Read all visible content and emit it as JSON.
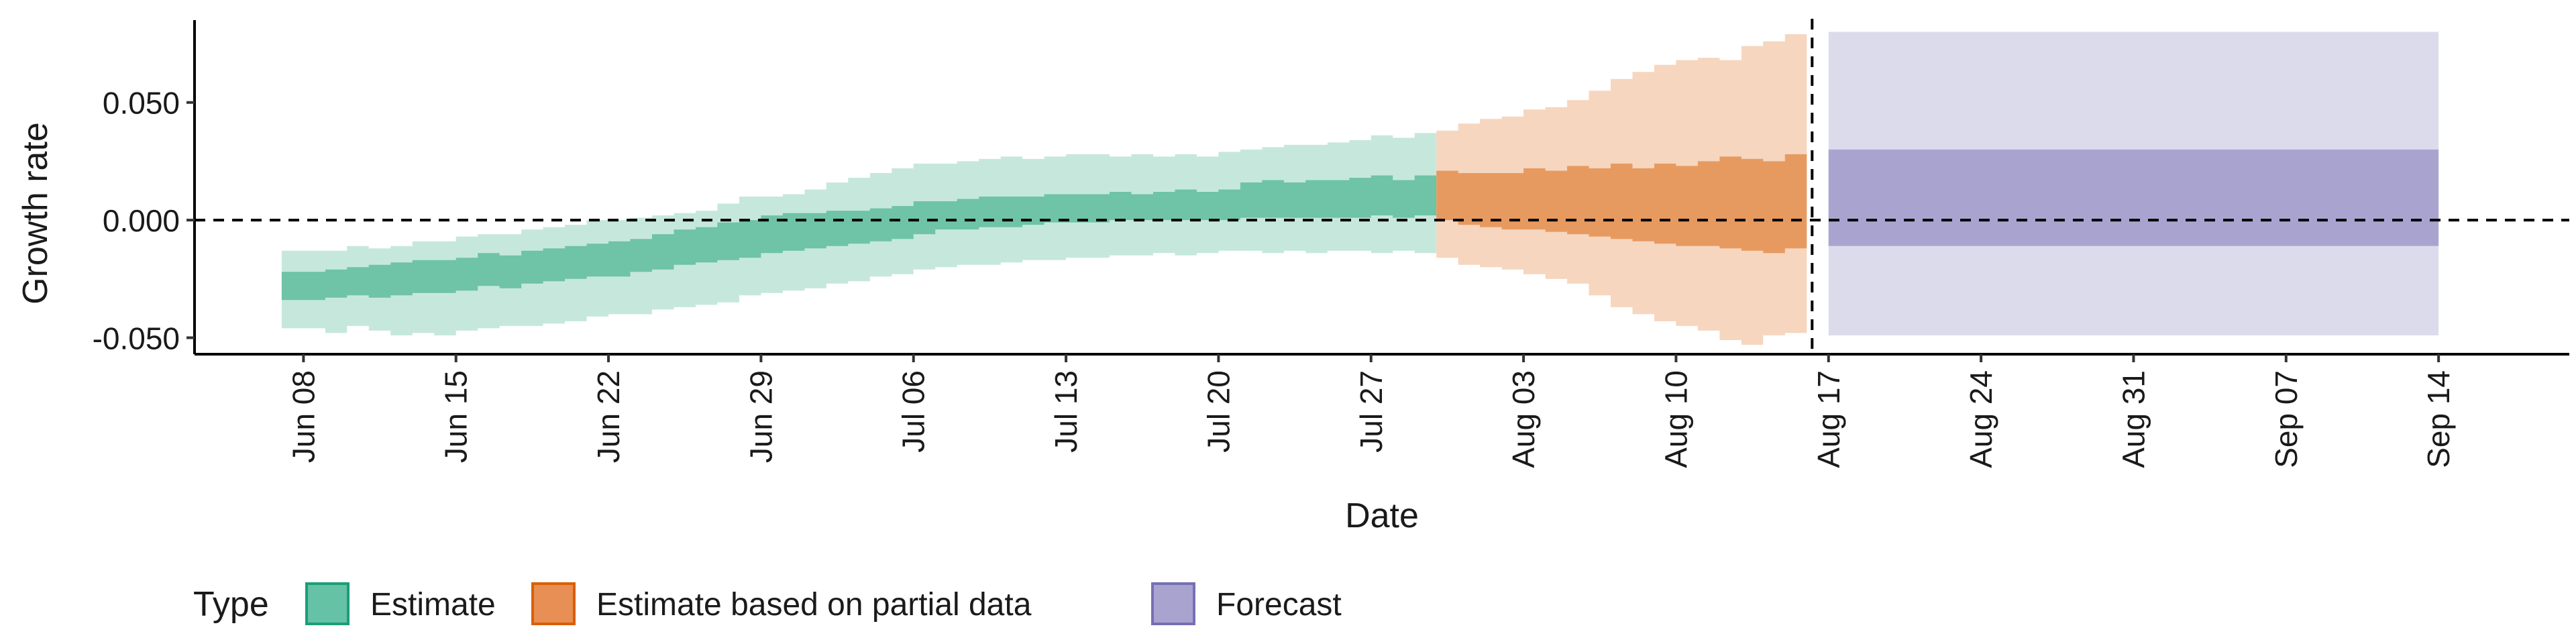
{
  "chart_data": {
    "type": "area",
    "xlabel": "Date",
    "ylabel": "Growth rate",
    "xlim": [
      "2020-06-03",
      "2020-09-20"
    ],
    "ylim": [
      -0.057,
      0.085
    ],
    "y_ticks": [
      -0.05,
      0.0,
      0.05
    ],
    "y_tick_labels": [
      "-0.050",
      "0.000",
      "0.050"
    ],
    "x_ticks": [
      "2020-06-08",
      "2020-06-15",
      "2020-06-22",
      "2020-06-29",
      "2020-07-06",
      "2020-07-13",
      "2020-07-20",
      "2020-07-27",
      "2020-08-03",
      "2020-08-10",
      "2020-08-17",
      "2020-08-24",
      "2020-08-31",
      "2020-09-07",
      "2020-09-14"
    ],
    "x_tick_labels": [
      "Jun 08",
      "Jun 15",
      "Jun 22",
      "Jun 29",
      "Jul 06",
      "Jul 13",
      "Jul 20",
      "Jul 27",
      "Aug 03",
      "Aug 10",
      "Aug 17",
      "Aug 24",
      "Aug 31",
      "Sep 07",
      "Sep 14"
    ],
    "reference_line_y": 0.0,
    "forecast_start_date": "2020-08-16",
    "grid": false,
    "legend": {
      "title": "Type",
      "position": "bottom-left",
      "entries": [
        {
          "label": "Estimate",
          "color": "#66c2a5",
          "border": "#1b9e77"
        },
        {
          "label": "Estimate based on partial data",
          "color": "#e78f55",
          "border": "#d95f02"
        },
        {
          "label": "Forecast",
          "color": "#a9a4cf",
          "border": "#7570b3"
        }
      ]
    },
    "series": [
      {
        "name": "Estimate",
        "color_inner": "#6fc3a6",
        "color_outer": "#c6e8dc",
        "dates": [
          "2020-06-07",
          "2020-06-08",
          "2020-06-09",
          "2020-06-10",
          "2020-06-11",
          "2020-06-12",
          "2020-06-13",
          "2020-06-14",
          "2020-06-15",
          "2020-06-16",
          "2020-06-17",
          "2020-06-18",
          "2020-06-19",
          "2020-06-20",
          "2020-06-21",
          "2020-06-22",
          "2020-06-23",
          "2020-06-24",
          "2020-06-25",
          "2020-06-26",
          "2020-06-27",
          "2020-06-28",
          "2020-06-29",
          "2020-06-30",
          "2020-07-01",
          "2020-07-02",
          "2020-07-03",
          "2020-07-04",
          "2020-07-05",
          "2020-07-06",
          "2020-07-07",
          "2020-07-08",
          "2020-07-09",
          "2020-07-10",
          "2020-07-11",
          "2020-07-12",
          "2020-07-13",
          "2020-07-14",
          "2020-07-15",
          "2020-07-16",
          "2020-07-17",
          "2020-07-18",
          "2020-07-19",
          "2020-07-20",
          "2020-07-21",
          "2020-07-22",
          "2020-07-23",
          "2020-07-24",
          "2020-07-25",
          "2020-07-26",
          "2020-07-27",
          "2020-07-28",
          "2020-07-29"
        ],
        "lower_90": [
          -0.046,
          -0.046,
          -0.048,
          -0.045,
          -0.047,
          -0.049,
          -0.048,
          -0.049,
          -0.047,
          -0.046,
          -0.045,
          -0.045,
          -0.044,
          -0.043,
          -0.041,
          -0.04,
          -0.04,
          -0.038,
          -0.037,
          -0.036,
          -0.035,
          -0.032,
          -0.031,
          -0.03,
          -0.029,
          -0.027,
          -0.026,
          -0.024,
          -0.023,
          -0.021,
          -0.02,
          -0.019,
          -0.019,
          -0.018,
          -0.017,
          -0.017,
          -0.016,
          -0.016,
          -0.015,
          -0.015,
          -0.014,
          -0.015,
          -0.014,
          -0.013,
          -0.013,
          -0.014,
          -0.013,
          -0.014,
          -0.013,
          -0.013,
          -0.014,
          -0.013,
          -0.014
        ],
        "lower_50": [
          -0.034,
          -0.034,
          -0.033,
          -0.032,
          -0.033,
          -0.032,
          -0.031,
          -0.031,
          -0.03,
          -0.028,
          -0.029,
          -0.027,
          -0.026,
          -0.025,
          -0.024,
          -0.024,
          -0.022,
          -0.021,
          -0.019,
          -0.018,
          -0.017,
          -0.016,
          -0.014,
          -0.013,
          -0.012,
          -0.011,
          -0.01,
          -0.009,
          -0.008,
          -0.006,
          -0.004,
          -0.004,
          -0.003,
          -0.003,
          -0.002,
          -0.001,
          -0.001,
          -0.001,
          0.0,
          0.0,
          0.0,
          0.0,
          0.0,
          0.0,
          0.001,
          0.001,
          0.001,
          0.001,
          0.001,
          0.001,
          0.002,
          0.001,
          0.002
        ],
        "upper_50": [
          -0.022,
          -0.022,
          -0.021,
          -0.02,
          -0.019,
          -0.018,
          -0.017,
          -0.017,
          -0.016,
          -0.014,
          -0.015,
          -0.013,
          -0.012,
          -0.011,
          -0.01,
          -0.009,
          -0.008,
          -0.006,
          -0.004,
          -0.003,
          -0.001,
          0.0,
          0.002,
          0.003,
          0.003,
          0.004,
          0.004,
          0.005,
          0.006,
          0.008,
          0.008,
          0.009,
          0.01,
          0.01,
          0.01,
          0.011,
          0.011,
          0.011,
          0.012,
          0.011,
          0.012,
          0.013,
          0.012,
          0.013,
          0.016,
          0.017,
          0.016,
          0.017,
          0.017,
          0.018,
          0.019,
          0.017,
          0.019
        ],
        "upper_90": [
          -0.013,
          -0.013,
          -0.013,
          -0.011,
          -0.012,
          -0.011,
          -0.009,
          -0.009,
          -0.007,
          -0.006,
          -0.006,
          -0.004,
          -0.003,
          -0.002,
          0.0,
          0.0,
          0.001,
          0.002,
          0.003,
          0.004,
          0.007,
          0.01,
          0.01,
          0.011,
          0.013,
          0.016,
          0.018,
          0.02,
          0.022,
          0.024,
          0.024,
          0.025,
          0.026,
          0.027,
          0.026,
          0.027,
          0.028,
          0.028,
          0.027,
          0.028,
          0.027,
          0.028,
          0.027,
          0.029,
          0.03,
          0.031,
          0.032,
          0.032,
          0.033,
          0.034,
          0.036,
          0.035,
          0.037
        ]
      },
      {
        "name": "Estimate based on partial data",
        "color_inner": "#e79a60",
        "color_outer": "#f6d6bf",
        "dates": [
          "2020-07-30",
          "2020-07-31",
          "2020-08-01",
          "2020-08-02",
          "2020-08-03",
          "2020-08-04",
          "2020-08-05",
          "2020-08-06",
          "2020-08-07",
          "2020-08-08",
          "2020-08-09",
          "2020-08-10",
          "2020-08-11",
          "2020-08-12",
          "2020-08-13",
          "2020-08-14",
          "2020-08-15"
        ],
        "lower_90": [
          -0.016,
          -0.019,
          -0.02,
          -0.021,
          -0.023,
          -0.025,
          -0.027,
          -0.032,
          -0.037,
          -0.04,
          -0.043,
          -0.045,
          -0.047,
          -0.051,
          -0.053,
          -0.049,
          -0.048
        ],
        "lower_50": [
          0.0,
          -0.002,
          -0.003,
          -0.004,
          -0.004,
          -0.005,
          -0.006,
          -0.007,
          -0.008,
          -0.009,
          -0.01,
          -0.011,
          -0.011,
          -0.012,
          -0.013,
          -0.014,
          -0.012
        ],
        "upper_50": [
          0.021,
          0.02,
          0.02,
          0.02,
          0.022,
          0.021,
          0.023,
          0.022,
          0.024,
          0.022,
          0.024,
          0.023,
          0.025,
          0.027,
          0.026,
          0.025,
          0.028
        ],
        "upper_90": [
          0.038,
          0.041,
          0.043,
          0.044,
          0.047,
          0.048,
          0.051,
          0.055,
          0.06,
          0.063,
          0.066,
          0.068,
          0.069,
          0.068,
          0.074,
          0.076,
          0.079
        ]
      },
      {
        "name": "Forecast",
        "color_inner": "#a9a4cf",
        "color_outer": "#dcdbec",
        "date_start": "2020-08-17",
        "date_end": "2020-09-14",
        "lower_90": -0.049,
        "lower_50": -0.011,
        "upper_50": 0.03,
        "upper_90": 0.08
      }
    ]
  }
}
